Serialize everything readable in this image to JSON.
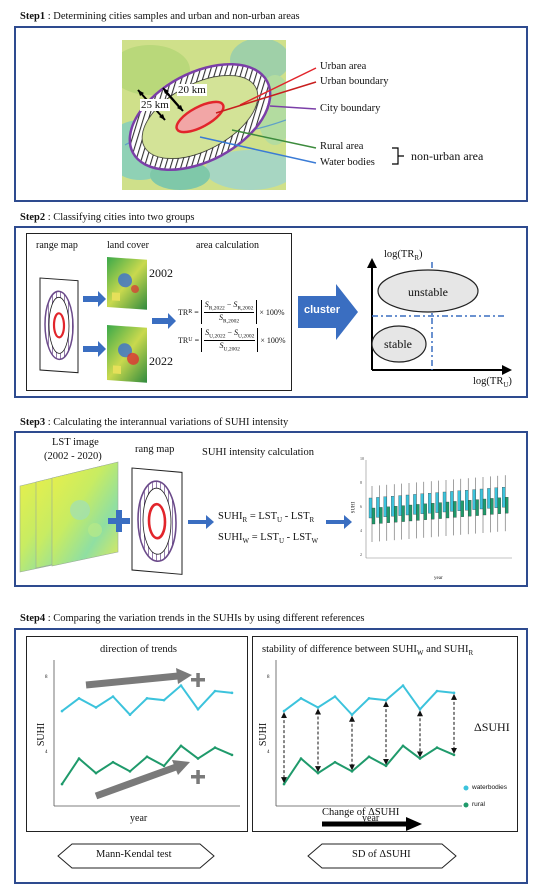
{
  "step1": {
    "step_label": "Step1",
    "title": " : Determining cities samples and urban and non-urban areas",
    "dist_inner": "20 km",
    "dist_outer": "25 km",
    "legend": [
      "Urban area",
      "Urban boundary",
      "City boundary",
      "Rural area",
      "Water bodies"
    ],
    "non_urban": "non-urban area",
    "colors": {
      "urban": "#e2252b",
      "city": "#7b3fa8",
      "rural": "#3d8b3d",
      "water": "#3a7bd5"
    }
  },
  "step2": {
    "step_label": "Step2",
    "title": " : Classifying cities into two groups",
    "labels": [
      "range map",
      "land cover",
      "area calculation"
    ],
    "years": [
      "2002",
      "2022"
    ],
    "tr_r": {
      "lhs": "TR",
      "sub": "R",
      "num": "S",
      "s1": "R,2022",
      "s2": "R,2002",
      "den": "R,2002",
      "tail": "× 100%"
    },
    "tr_u": {
      "lhs": "TR",
      "sub": "U",
      "num": "S",
      "s1": "U,2022",
      "s2": "U,2002",
      "den": "U,2002",
      "tail": "× 100%"
    },
    "cluster": "cluster",
    "ylabel": "log(TR",
    "ysub": "R",
    "xlabel": "log(TR",
    "xsub": "U",
    "unstable": "unstable",
    "stable": "stable"
  },
  "step3": {
    "step_label": "Step3",
    "title": " : Calculating the interannual variations of SUHI intensity",
    "lst_label": "LST image",
    "lst_years": "(2002 - 2020)",
    "rang_label": "rang map",
    "calc_label": "SUHI intensity calculation",
    "plus": "+",
    "eq_r": {
      "l": "SUHI",
      "ls": "R",
      "m": " = LST",
      "ms": "U",
      "r": " - LST",
      "rs": "R"
    },
    "eq_w": {
      "l": "SUHI",
      "ls": "W",
      "m": " = LST",
      "ms": "U",
      "r": " - LST",
      "rs": "W"
    },
    "mini_ylabel": "SUHI",
    "mini_xlabel": "year",
    "mini_ticks": [
      "2",
      "4",
      "6",
      "8",
      "10"
    ]
  },
  "step4": {
    "step_label": "Step4",
    "title": " : Comparing the variation trends in the SUHIs by using different references",
    "left_title": "direction of trends",
    "right_title_a": "stability of difference between SUHI",
    "right_title_b": " and SUHI",
    "sub_w": "W",
    "sub_r": "R",
    "ylabel": "SUHI",
    "xlabel": "year",
    "tick_hi": "8",
    "tick_lo": "4",
    "delta": "ΔSUHI",
    "change": "Change of ΔSUHI",
    "legend_water": "waterbodies",
    "legend_rural": "rural",
    "method_left": "Mann-Kendal test",
    "method_right": "SD of ΔSUHI",
    "colors": {
      "water": "#3cc3dc",
      "rural": "#1f9a6b",
      "arrow": "#7a7a7a"
    }
  },
  "chart_data": [
    {
      "type": "line",
      "title": "direction of trends",
      "xlabel": "year",
      "ylabel": "SUHI",
      "x": [
        1,
        2,
        3,
        4,
        5,
        6,
        7,
        8,
        9,
        10,
        11
      ],
      "series": [
        {
          "values": [
            7.2,
            7.9,
            7.4,
            8.0,
            7.0,
            7.9,
            7.8,
            8.6,
            7.3,
            8.3,
            8.2
          ]
        },
        {
          "values": [
            3.2,
            4.6,
            3.8,
            4.4,
            3.9,
            4.7,
            4.2,
            5.3,
            4.6,
            5.2,
            4.8
          ]
        }
      ]
    },
    {
      "type": "line",
      "title": "stability of difference between SUHIW and SUHIR",
      "xlabel": "year",
      "ylabel": "SUHI",
      "x": [
        1,
        2,
        3,
        4,
        5,
        6,
        7,
        8,
        9,
        10,
        11
      ],
      "series": [
        {
          "name": "waterbodies",
          "values": [
            7.2,
            7.9,
            7.4,
            8.0,
            7.0,
            7.9,
            7.8,
            8.6,
            7.3,
            8.3,
            8.2
          ]
        },
        {
          "name": "rural",
          "values": [
            3.2,
            4.6,
            3.8,
            4.4,
            3.9,
            4.7,
            4.2,
            5.3,
            4.6,
            5.2,
            4.8
          ]
        }
      ]
    }
  ]
}
